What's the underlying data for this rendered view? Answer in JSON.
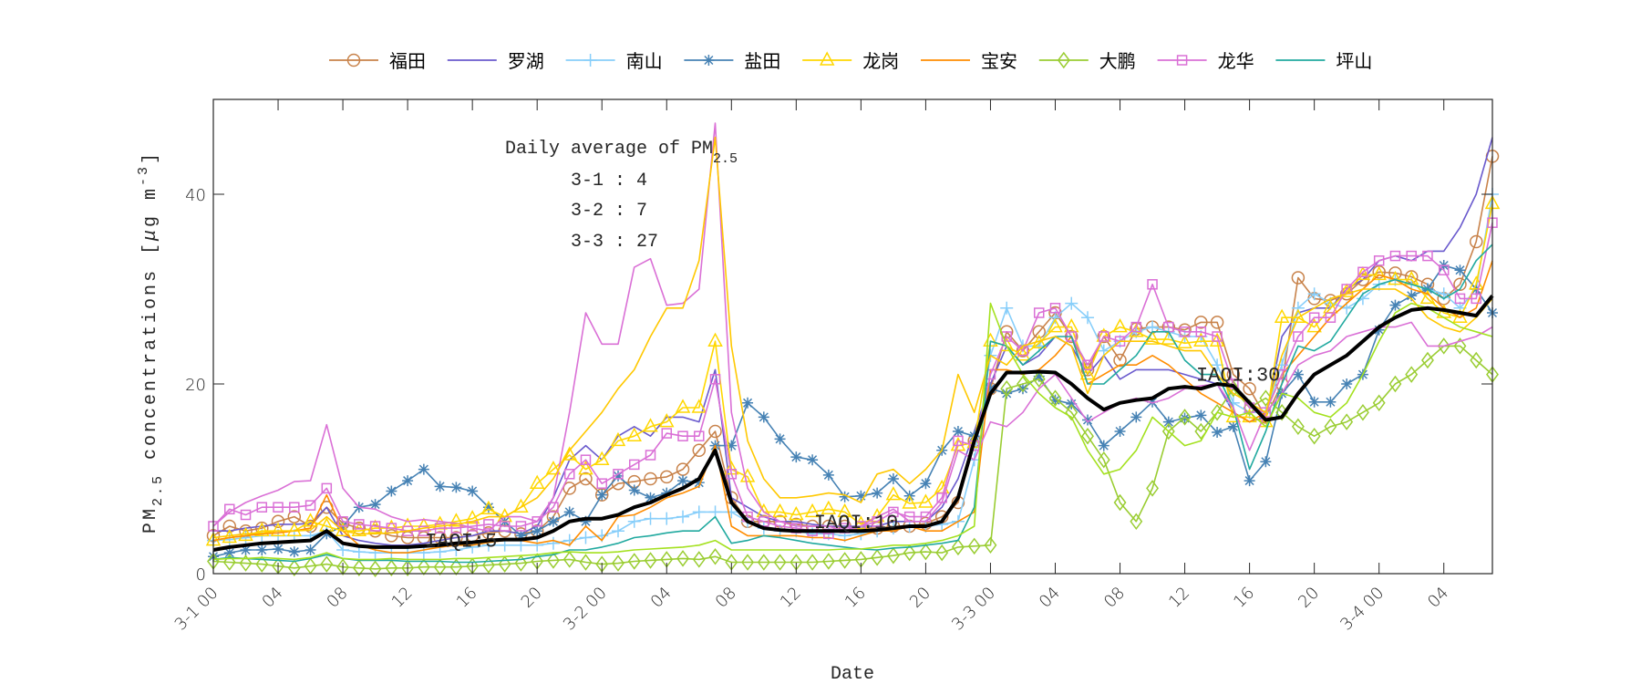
{
  "chart_data": {
    "type": "line",
    "xlabel": "Date",
    "ylabel": {
      "main": "PM",
      "sub": "2.5",
      "rest": " concentrations [",
      "mu": "μ",
      "unit": "g m",
      "sup": "-3",
      "end": "]"
    },
    "ylim": [
      0,
      50
    ],
    "xlim_hours": [
      0,
      79
    ],
    "y_ticks": [
      0,
      20,
      40
    ],
    "x_tick_labels": [
      "3-1 00",
      "04",
      "08",
      "12",
      "16",
      "20",
      "3-2 00",
      "04",
      "08",
      "12",
      "16",
      "20",
      "3-3 00",
      "04",
      "08",
      "12",
      "16",
      "20",
      "3-4 00",
      "04"
    ],
    "legend_position": "top-outside",
    "grid": false,
    "annotation": {
      "title_main": "Daily average of PM",
      "title_sub": "2.5",
      "lines": [
        "3-1 : 4",
        "3-2 : 7",
        "3-3 : 27"
      ]
    },
    "iaqi_labels": [
      "IAQI:5",
      "IAQI:10",
      "IAQI:30"
    ],
    "series": [
      {
        "name": "福田",
        "color": "#C8824A",
        "marker": "circle",
        "values": [
          4,
          5,
          4.5,
          4.8,
          5.5,
          6,
          5,
          7,
          5.3,
          4.8,
          4.5,
          4,
          3.8,
          3.8,
          3.8,
          3.8,
          4,
          4.3,
          4.5,
          4.2,
          4.5,
          6,
          9,
          10,
          8.3,
          9.5,
          9.7,
          10,
          10.2,
          11,
          13,
          15,
          8,
          5.5,
          5.5,
          5.5,
          5.2,
          5,
          5,
          5,
          4.8,
          4.8,
          5,
          5,
          5.3,
          6,
          7.5,
          14,
          19.5,
          25.5,
          23.5,
          25.5,
          27.5,
          25,
          21.5,
          25,
          22.5,
          25.8,
          26,
          26,
          25.7,
          26.5,
          26.5,
          21,
          19.5,
          16.5,
          20,
          31.2,
          29,
          28.8,
          29.5,
          31,
          31.8,
          31.7,
          31.3,
          30.5,
          29,
          30.5,
          35,
          44
        ]
      },
      {
        "name": "罗湖",
        "color": "#6A5ACD",
        "marker": "none",
        "values": [
          4.5,
          4.5,
          4.8,
          5,
          5.2,
          5.2,
          5.3,
          7,
          4,
          3.5,
          3.2,
          3,
          3,
          3.2,
          3.5,
          3.8,
          4,
          4.5,
          4.5,
          4.2,
          5,
          8,
          12,
          13.5,
          12,
          14.5,
          15.5,
          14.5,
          16.5,
          16.5,
          16,
          21.5,
          8,
          7,
          6,
          5.5,
          5.5,
          5.2,
          5,
          5,
          5,
          5,
          5.5,
          5.5,
          5.5,
          7,
          10,
          15,
          20,
          24,
          22,
          23,
          25,
          24,
          21,
          23,
          20.5,
          21.5,
          21.5,
          21.5,
          21,
          20.5,
          20,
          17,
          16,
          16.5,
          25,
          27.5,
          28,
          28,
          30,
          31,
          33,
          33.5,
          33,
          34,
          34,
          36.5,
          40,
          46
        ]
      },
      {
        "name": "南山",
        "color": "#87CEFA",
        "marker": "plus",
        "values": [
          3.5,
          3.6,
          3.8,
          4,
          4,
          4,
          4,
          4.5,
          2.5,
          2.3,
          2.2,
          2.2,
          2.2,
          2.2,
          2.3,
          2.5,
          2.8,
          3,
          3,
          3,
          3,
          3.2,
          3.5,
          3.8,
          4,
          4.5,
          5.5,
          5.8,
          5.8,
          6,
          6.5,
          6.5,
          6.5,
          5.5,
          4.8,
          4.5,
          4.5,
          4.2,
          4.2,
          4,
          4.2,
          4.5,
          4.8,
          5,
          5,
          5.2,
          5.5,
          12,
          23,
          28,
          24,
          24,
          27,
          28.5,
          27,
          23.5,
          24.5,
          25.5,
          26,
          25.5,
          25,
          25,
          22,
          18,
          17,
          17,
          22,
          28,
          29.5,
          28.5,
          28,
          29,
          30.5,
          31,
          30.5,
          30,
          29.5,
          28,
          30,
          40
        ]
      },
      {
        "name": "盐田",
        "color": "#4682B4",
        "marker": "asterisk",
        "values": [
          1.8,
          2.2,
          2.5,
          2.5,
          2.6,
          2.3,
          2.5,
          4.2,
          5,
          7,
          7.3,
          8.7,
          9.8,
          11,
          9.2,
          9.1,
          8.7,
          7,
          5.5,
          4,
          4.5,
          5.5,
          6.5,
          5.5,
          8.3,
          10.3,
          8.8,
          8,
          8.5,
          9.8,
          9.6,
          13.5,
          13.5,
          18,
          16.5,
          14.2,
          12.3,
          12,
          10.4,
          8.1,
          8.2,
          8.5,
          10,
          8.2,
          9.5,
          13,
          15,
          14.5,
          19.5,
          19,
          19.5,
          20.8,
          18.3,
          17.9,
          16.2,
          13.5,
          15,
          16.5,
          18.1,
          16,
          16.4,
          16.7,
          14.9,
          15.5,
          9.8,
          11.8,
          19,
          21,
          18.1,
          18.1,
          20,
          21,
          25.7,
          28.3,
          29.3,
          30,
          32.5,
          32,
          30,
          27.5
        ]
      },
      {
        "name": "龙岗",
        "color": "#FFD700",
        "marker": "triangle",
        "values": [
          3.5,
          3.8,
          4,
          4.5,
          4.5,
          4.5,
          5.5,
          5,
          4.5,
          4.5,
          4.8,
          4.8,
          5,
          5,
          5.2,
          5.5,
          5.8,
          6.8,
          6,
          7,
          9.5,
          11,
          12.5,
          11,
          12,
          14,
          14.5,
          15.5,
          16,
          17.5,
          17.5,
          24.5,
          11,
          10.2,
          6.5,
          6.5,
          6.2,
          6.5,
          6.8,
          6.5,
          5.2,
          6,
          8.3,
          7.4,
          7.5,
          9,
          13.5,
          13.8,
          24.5,
          24,
          23,
          24.3,
          26,
          26,
          21,
          25,
          26,
          25.5,
          24.7,
          24.7,
          24.3,
          24.5,
          24.5,
          16.5,
          16.5,
          16,
          27,
          27,
          26,
          28,
          29.7,
          31.5,
          31.5,
          31,
          31,
          29,
          27.5,
          27,
          30.5,
          39
        ]
      },
      {
        "name": "宝安",
        "color": "#FF8C00",
        "marker": "none",
        "values": [
          3.5,
          3.8,
          4,
          4.2,
          4.3,
          4.5,
          4.8,
          8.3,
          4.5,
          3,
          2.5,
          2.2,
          2.2,
          2.5,
          2.8,
          3,
          3,
          3.3,
          3.5,
          3.5,
          3.2,
          3.5,
          3,
          5,
          3.5,
          6,
          6.2,
          7,
          8,
          8.5,
          9.2,
          13.5,
          5,
          4,
          4,
          4,
          4,
          3.8,
          3.8,
          3.5,
          4,
          4.5,
          4.5,
          5,
          4.5,
          4.5,
          5.5,
          6.5,
          21.5,
          21.5,
          21,
          21.5,
          23,
          25,
          20,
          21,
          22,
          22,
          23,
          22,
          20.5,
          19,
          18,
          17,
          16,
          17,
          21,
          23,
          25,
          27,
          28.5,
          30,
          31.5,
          31,
          30,
          29.5,
          28,
          27,
          28,
          33
        ]
      },
      {
        "name": "大鹏",
        "color": "#9ACD32",
        "marker": "diamond",
        "values": [
          1.3,
          1.2,
          1.1,
          1,
          0.8,
          0.6,
          0.8,
          1,
          0.7,
          0.6,
          0.5,
          0.6,
          0.6,
          0.7,
          0.7,
          0.7,
          0.8,
          0.9,
          1,
          1.1,
          1.3,
          1.4,
          1.5,
          1.2,
          1,
          1.1,
          1.3,
          1.4,
          1.5,
          1.6,
          1.5,
          1.8,
          1.2,
          1.2,
          1.2,
          1.2,
          1.2,
          1.2,
          1.3,
          1.4,
          1.5,
          1.7,
          1.9,
          2.2,
          2.3,
          2.2,
          2.8,
          2.9,
          3,
          19.5,
          20,
          20.5,
          18.5,
          17,
          14.5,
          12,
          7.5,
          5.5,
          9,
          15,
          16.5,
          15,
          17,
          19.5,
          17.5,
          18.5,
          17,
          15.5,
          14.5,
          15.5,
          16,
          17,
          18,
          20,
          21,
          22.5,
          24,
          24,
          22.5,
          21
        ]
      },
      {
        "name": "龙华",
        "color": "#DA70D6",
        "marker": "square",
        "values": [
          5,
          6.8,
          6.2,
          7,
          7,
          7,
          7.2,
          9,
          5.5,
          5.2,
          5,
          4.8,
          4.5,
          4.5,
          4.8,
          4.8,
          5,
          5.2,
          5,
          5,
          5.5,
          7,
          10.5,
          12,
          9.5,
          10.5,
          11.5,
          12.5,
          14.8,
          14.5,
          14.5,
          20.5,
          10.5,
          6,
          5.5,
          5,
          4.8,
          4.5,
          4.2,
          4.8,
          5,
          5.5,
          6.5,
          6,
          6,
          8,
          14,
          13.5,
          21,
          25,
          23.5,
          27.5,
          28,
          25,
          22,
          25,
          24.5,
          26,
          30.5,
          26,
          25.5,
          25.5,
          25,
          20,
          17.5,
          17,
          21,
          25,
          27,
          27,
          30,
          31.8,
          33,
          33.5,
          33.5,
          33.5,
          32,
          29,
          29,
          37
        ]
      },
      {
        "name": "坪山",
        "color": "#20A99F",
        "marker": "none",
        "values": [
          1.5,
          1.7,
          1.6,
          1.5,
          1.4,
          1.3,
          1.6,
          2,
          1.6,
          1.4,
          1.4,
          1.4,
          1.3,
          1.3,
          1.3,
          1.2,
          1.2,
          1.3,
          1.4,
          1.5,
          1.8,
          2,
          2.5,
          2.5,
          2.8,
          3.2,
          3.8,
          4,
          4.3,
          4.5,
          4.5,
          6,
          3.2,
          3.5,
          4,
          3.8,
          3.5,
          3.2,
          3,
          2.8,
          2.6,
          2.5,
          2.7,
          2.8,
          3,
          3.2,
          3.5,
          7,
          24.5,
          24,
          22,
          23.5,
          25,
          25,
          20,
          20,
          21.5,
          23,
          25.5,
          25.5,
          22.5,
          21,
          21,
          17.5,
          11,
          15,
          20,
          24,
          23.5,
          24.5,
          27,
          29.5,
          30.5,
          31,
          30.5,
          30,
          29,
          30,
          33,
          34.7
        ]
      },
      {
        "color": "#DA70D6",
        "marker": "none",
        "values": [
          5,
          6.5,
          7.5,
          8.2,
          8.8,
          9.7,
          9.8,
          15.7,
          9,
          7,
          6.8,
          6,
          5.5,
          5.7,
          5.5,
          5.3,
          4.8,
          4.5,
          6,
          6,
          5.5,
          8,
          17,
          27.5,
          24.2,
          24.2,
          32.3,
          33.2,
          28.3,
          28.5,
          30,
          47.5,
          17,
          9,
          6.5,
          5.5,
          5,
          5,
          5,
          4.5,
          5,
          6,
          6.8,
          5.5,
          5.5,
          7.5,
          13,
          12,
          16,
          15.5,
          17,
          19.5,
          21,
          18.5,
          16,
          17,
          18,
          18.5,
          18,
          18.5,
          19.5,
          19.8,
          20,
          17.5,
          13,
          17,
          19,
          22,
          23,
          23.5,
          25,
          25.5,
          26,
          26,
          26.5,
          24,
          24,
          24.5,
          25,
          26
        ]
      },
      {
        "color": "#FFC800",
        "marker": "none",
        "values": [
          3.8,
          4,
          4.2,
          4.3,
          4.5,
          4.5,
          4.6,
          6,
          4.5,
          4.2,
          4.2,
          4.3,
          4.5,
          4.8,
          5,
          5.2,
          5.5,
          6,
          6,
          7,
          8,
          10,
          13,
          15,
          17,
          19.5,
          21.5,
          25,
          28,
          28,
          33,
          46,
          24,
          14,
          10,
          8,
          8,
          8.2,
          8.5,
          8.3,
          7.5,
          10.5,
          11,
          9.5,
          11,
          13,
          21,
          17,
          23,
          22,
          24,
          24.5,
          25,
          24,
          19,
          23,
          24.5,
          24.5,
          24.5,
          24,
          23.5,
          23.5,
          21,
          19,
          18,
          17,
          23,
          27,
          28,
          29,
          29.5,
          30,
          30,
          30,
          29,
          27,
          26,
          25.5,
          27,
          29
        ]
      },
      {
        "color": "#A4E11F",
        "marker": "none",
        "values": [
          1.5,
          1.6,
          1.6,
          1.7,
          1.6,
          1.5,
          1.7,
          2.2,
          1.6,
          1.5,
          1.5,
          1.6,
          1.5,
          1.5,
          1.5,
          1.6,
          1.6,
          1.7,
          1.8,
          1.9,
          2,
          2.2,
          2.3,
          2.2,
          2.2,
          2.3,
          2.5,
          2.6,
          2.7,
          2.8,
          3,
          3.5,
          2.5,
          2.5,
          2.5,
          2.5,
          2.5,
          2.5,
          2.5,
          2.6,
          2.6,
          2.8,
          3,
          3,
          3.2,
          3.5,
          4,
          5,
          28.5,
          24,
          21,
          19,
          17.5,
          16.5,
          13,
          10.5,
          11,
          13,
          16.5,
          15,
          13.5,
          14,
          17,
          16.5,
          17,
          15.5,
          19,
          18.5,
          17,
          16.5,
          18,
          21,
          24.5,
          27.5,
          28.5,
          28,
          27,
          26,
          25.5,
          25
        ]
      },
      {
        "color": "#000000",
        "marker": "none",
        "width": "thick",
        "values": [
          2.5,
          2.8,
          3,
          3.2,
          3.3,
          3.4,
          3.5,
          4.5,
          3.2,
          2.9,
          2.8,
          2.8,
          2.8,
          2.9,
          3,
          3.2,
          3.3,
          3.5,
          3.6,
          3.6,
          3.8,
          4.5,
          5.5,
          5.8,
          5.8,
          6.2,
          7,
          7.5,
          8.3,
          9,
          10,
          13,
          7.5,
          5.5,
          4.8,
          4.6,
          4.5,
          4.5,
          4.5,
          4.5,
          4.5,
          4.6,
          4.8,
          5,
          5,
          5.5,
          8,
          14,
          19,
          21.2,
          21.2,
          21.3,
          21.2,
          20,
          18.5,
          17.3,
          18,
          18.3,
          18.5,
          19.5,
          19.7,
          19.5,
          20,
          19.8,
          18,
          16.2,
          16.5,
          19,
          21,
          22,
          23,
          24.5,
          26,
          27,
          27.8,
          28,
          27.8,
          27.5,
          27.2,
          29.3
        ]
      }
    ]
  }
}
